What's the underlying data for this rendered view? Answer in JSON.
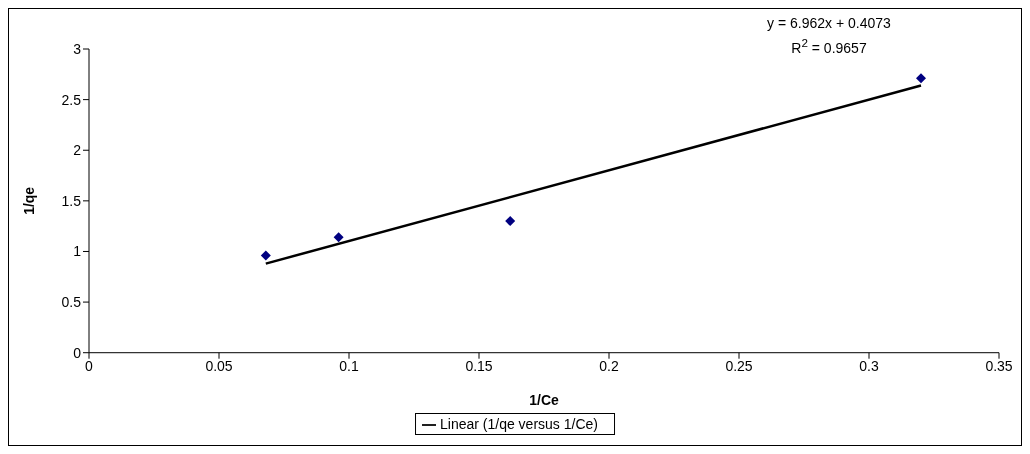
{
  "chart_data": {
    "type": "scatter",
    "xlabel": "1/Ce",
    "ylabel": "1/qe",
    "series": [
      {
        "color": "#000080",
        "marker": "diamond",
        "x": [
          0.068,
          0.096,
          0.162,
          0.32
        ],
        "values": [
          0.96,
          1.14,
          1.3,
          2.71
        ]
      },
      {
        "type": "line",
        "name": "Linear (1/qe versus 1/Ce)",
        "color": "#000000",
        "marker": "none",
        "line_style": "solid",
        "x": [
          0.068,
          0.32
        ],
        "values": [
          0.88,
          2.64
        ]
      }
    ],
    "annotations": [
      "y = 6.962x + 0.4073",
      "R$^{2}$ = 0.9657"
    ],
    "xlim": [
      0,
      0.35
    ],
    "xticks": [
      0,
      0.05,
      0.1,
      0.15,
      0.2,
      0.25,
      0.3,
      0.35
    ],
    "ylim": [
      0,
      3
    ],
    "yticks": [
      0,
      0.5,
      1,
      1.5,
      2,
      2.5,
      3
    ],
    "grid": false,
    "legend": "bottom"
  }
}
